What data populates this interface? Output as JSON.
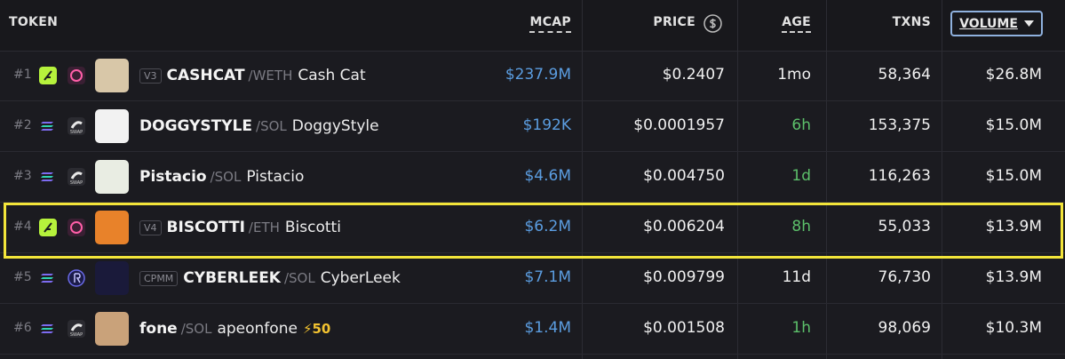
{
  "header": {
    "columns": [
      "TOKEN",
      "MCAP",
      "PRICE",
      "AGE",
      "TXNS",
      "VOLUME"
    ]
  },
  "rows": [
    {
      "rank": "#1",
      "chain": "eth",
      "dex": "uniswap",
      "badge": "V3",
      "symbol": "CASHCAT",
      "quote": "/WETH",
      "name": "Cash Cat",
      "mcap": "$237.9M",
      "price": "$0.2407",
      "age": "1mo",
      "txns": "58,364",
      "volume": "$26.8M",
      "image_color": "#d8c7a8"
    },
    {
      "rank": "#2",
      "chain": "sol",
      "dex": "swap",
      "dex_label": "SWAP",
      "symbol": "DOGGYSTYLE",
      "quote": "/SOL",
      "name": "DoggyStyle",
      "mcap": "$192K",
      "price": "$0.0001957",
      "age": "6h",
      "age_color": "#5cbf6a",
      "txns": "153,375",
      "volume": "$15.0M",
      "image_color": "#f2f2f2"
    },
    {
      "rank": "#3",
      "chain": "sol",
      "dex": "swap",
      "dex_label": "SWAP",
      "symbol": "Pistacio",
      "quote": "/SOL",
      "name": "Pistacio",
      "mcap": "$4.6M",
      "price": "$0.004750",
      "age": "1d",
      "age_color": "#5cbf6a",
      "txns": "116,263",
      "volume": "$15.0M",
      "image_color": "#e9ede3"
    },
    {
      "rank": "#4",
      "chain": "eth",
      "dex": "uniswap",
      "badge": "V4",
      "symbol": "BISCOTTI",
      "quote": "/ETH",
      "name": "Biscotti",
      "mcap": "$6.2M",
      "price": "$0.006204",
      "age": "8h",
      "age_color": "#5cbf6a",
      "txns": "55,033",
      "volume": "$13.9M",
      "image_color": "#e8822a",
      "highlight_color": "#f3e53a"
    },
    {
      "rank": "#5",
      "chain": "sol",
      "dex": "raydium",
      "badge": "CPMM",
      "symbol": "CYBERLEEK",
      "quote": "/SOL",
      "name": "CyberLeek",
      "mcap": "$7.1M",
      "price": "$0.009799",
      "age": "11d",
      "txns": "76,730",
      "volume": "$13.9M",
      "image_color": "#1a1a3a"
    },
    {
      "rank": "#6",
      "chain": "sol",
      "dex": "swap",
      "dex_label": "SWAP",
      "symbol": "fone",
      "quote": "/SOL",
      "name": "apeonfone",
      "boost": "50",
      "mcap": "$1.4M",
      "price": "$0.001508",
      "age": "1h",
      "age_color": "#5cbf6a",
      "txns": "98,069",
      "volume": "$10.3M",
      "image_color": "#c9a27a"
    }
  ]
}
